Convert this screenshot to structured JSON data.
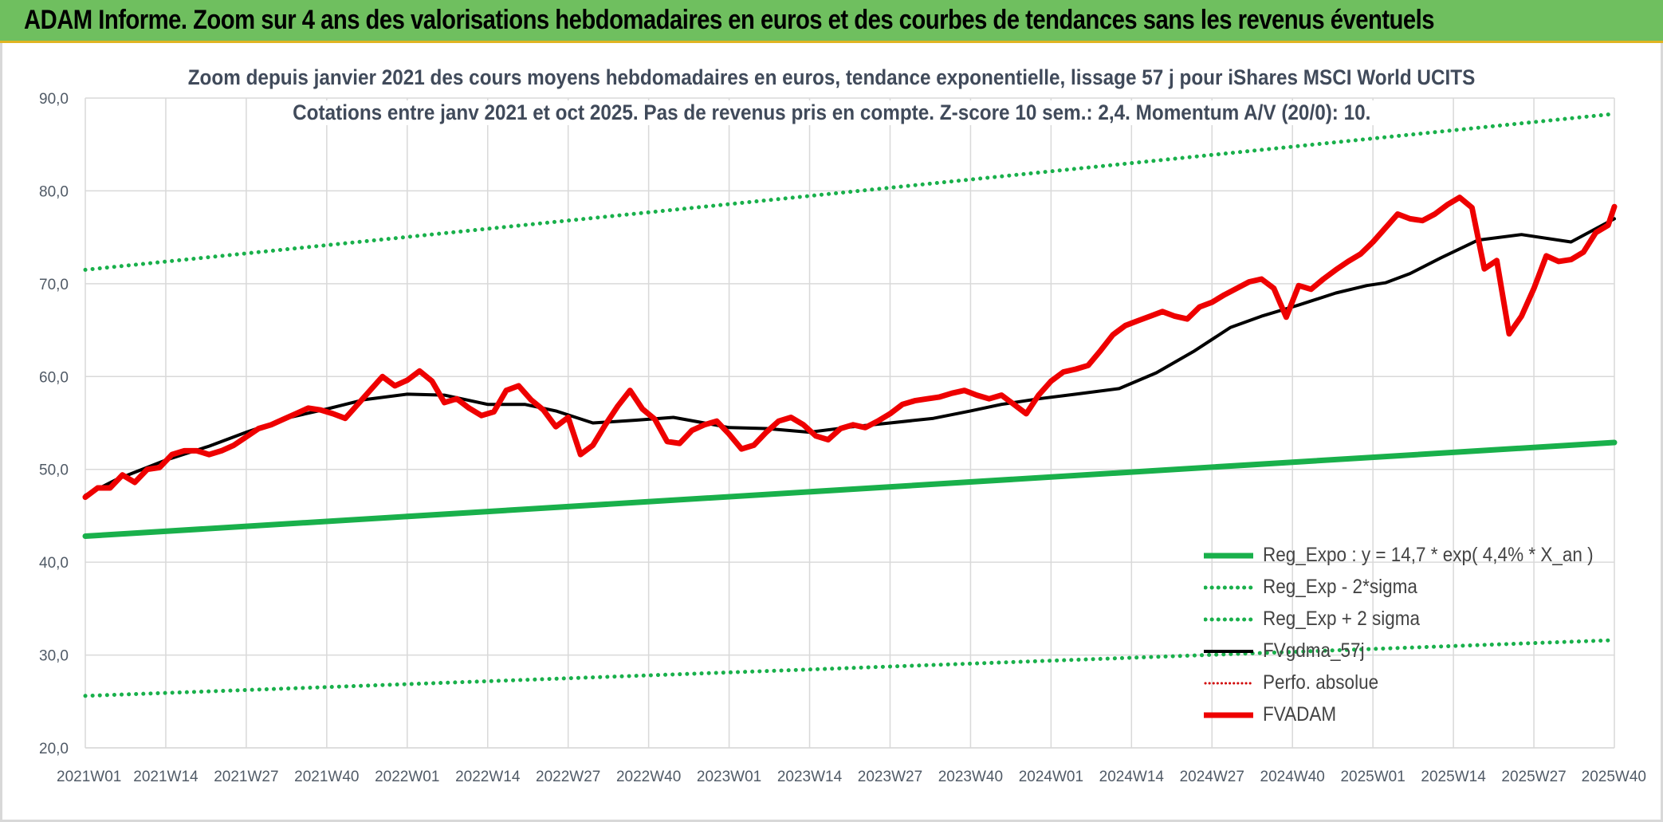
{
  "header": {
    "title": "ADAM Informe. Zoom sur 4 ans des valorisations hebdomadaires en euros et des courbes de tendances sans les revenus éventuels"
  },
  "colors": {
    "header_bg": "#6fbf5f",
    "header_border": "#e0b422",
    "trend_green": "#19b04b",
    "fvadam_red": "#ee0000",
    "smooth_black": "#000000",
    "perf_red": "#d00000",
    "grid": "#d9d9d9"
  },
  "chart_data": {
    "type": "line",
    "title": "Zoom depuis janvier 2021 des cours moyens hebdomadaires en euros, tendance exponentielle, lissage 57 j pour iShares MSCI World UCITS",
    "subtitle": "Cotations entre janv 2021 et oct 2025. Pas de revenus pris en compte. Z-score 10 sem.: 2,4. Momentum A/V (20/0): 10.",
    "xlabel": "",
    "ylabel": "",
    "ylim": [
      20,
      90
    ],
    "yticks": [
      "20,0",
      "30,0",
      "40,0",
      "50,0",
      "60,0",
      "70,0",
      "80,0",
      "90,0"
    ],
    "x_ticks": [
      "2021W01",
      "2021W14",
      "2021W27",
      "2021W40",
      "2022W01",
      "2022W14",
      "2022W27",
      "2022W40",
      "2023W01",
      "2023W14",
      "2023W27",
      "2023W40",
      "2024W01",
      "2024W14",
      "2024W27",
      "2024W40",
      "2025W01",
      "2025W14",
      "2025W27",
      "2025W40"
    ],
    "x_week_index_range": [
      0,
      247
    ],
    "grid": true,
    "legend_position": "bottom-right",
    "series": [
      {
        "name": "Reg_Expo : y = 14,7 * exp( 4,4% *  X_an )",
        "style": "solid-thick",
        "color": "#19b04b",
        "x_index": [
          0,
          247
        ],
        "values": [
          42.8,
          52.9
        ]
      },
      {
        "name": "Reg_Exp - 2*sigma",
        "style": "dotted",
        "color": "#19b04b",
        "x_index": [
          0,
          247
        ],
        "values": [
          25.6,
          31.6
        ]
      },
      {
        "name": "Reg_Exp + 2 sigma",
        "style": "dotted",
        "color": "#19b04b",
        "x_index": [
          0,
          247
        ],
        "values": [
          71.5,
          88.3
        ]
      },
      {
        "name": "FVgdma_57j",
        "style": "solid",
        "color": "#000000",
        "x_index": [
          0,
          5,
          13,
          20,
          26,
          33,
          39,
          45,
          52,
          58,
          65,
          71,
          76,
          82,
          89,
          95,
          100,
          104,
          110,
          117,
          124,
          130,
          137,
          143,
          148,
          154,
          160,
          167,
          173,
          179,
          185,
          190,
          196,
          202,
          207,
          210,
          214,
          219,
          225,
          232,
          240,
          247
        ],
        "values": [
          47.2,
          48.9,
          51.0,
          52.5,
          54.0,
          55.6,
          56.5,
          57.5,
          58.1,
          58.0,
          57.0,
          57.0,
          56.3,
          55.0,
          55.3,
          55.6,
          55.0,
          54.5,
          54.4,
          54.0,
          54.6,
          55.0,
          55.5,
          56.3,
          57.0,
          57.6,
          58.1,
          58.7,
          60.4,
          62.7,
          65.3,
          66.5,
          67.7,
          69.0,
          69.8,
          70.1,
          71.1,
          72.8,
          74.7,
          75.3,
          74.5,
          77.0
        ]
      },
      {
        "name": "Perfo. absolue",
        "style": "dotted",
        "color": "#d00000",
        "x_index": [],
        "values": []
      },
      {
        "name": "FVADAM",
        "style": "solid-thick",
        "color": "#ee0000",
        "x_index": [
          0,
          2,
          4,
          6,
          8,
          10,
          12,
          14,
          16,
          18,
          20,
          22,
          24,
          26,
          28,
          30,
          32,
          34,
          36,
          38,
          40,
          42,
          44,
          46,
          48,
          50,
          52,
          54,
          56,
          58,
          60,
          62,
          64,
          66,
          68,
          70,
          72,
          74,
          76,
          78,
          80,
          82,
          84,
          86,
          88,
          90,
          92,
          94,
          96,
          98,
          100,
          102,
          104,
          106,
          108,
          110,
          112,
          114,
          116,
          118,
          120,
          122,
          124,
          126,
          128,
          130,
          132,
          134,
          136,
          138,
          140,
          142,
          144,
          146,
          148,
          150,
          152,
          154,
          156,
          158,
          160,
          162,
          164,
          166,
          168,
          170,
          172,
          174,
          176,
          178,
          180,
          182,
          184,
          186,
          188,
          190,
          192,
          194,
          196,
          198,
          200,
          202,
          204,
          206,
          208,
          210,
          212,
          214,
          216,
          218,
          220,
          222,
          224,
          226,
          228,
          230,
          232,
          234,
          236,
          238,
          240,
          242,
          244,
          246,
          247
        ],
        "values": [
          47.0,
          48.0,
          48.0,
          49.4,
          48.6,
          50.0,
          50.2,
          51.6,
          52.0,
          52.0,
          51.6,
          52.0,
          52.6,
          53.5,
          54.4,
          54.8,
          55.4,
          56.0,
          56.6,
          56.4,
          56.0,
          55.5,
          57.0,
          58.5,
          60.0,
          59.0,
          59.6,
          60.6,
          59.5,
          57.2,
          57.6,
          56.6,
          55.8,
          56.2,
          58.5,
          59.0,
          57.5,
          56.4,
          54.6,
          55.6,
          51.6,
          52.6,
          54.8,
          56.8,
          58.5,
          56.5,
          55.4,
          53.0,
          52.8,
          54.2,
          54.8,
          55.2,
          53.8,
          52.2,
          52.6,
          54.0,
          55.2,
          55.6,
          54.8,
          53.6,
          53.2,
          54.4,
          54.8,
          54.5,
          55.2,
          56.0,
          57.0,
          57.4,
          57.6,
          57.8,
          58.2,
          58.5,
          58.0,
          57.6,
          58.0,
          57.0,
          56.0,
          58.0,
          59.5,
          60.5,
          60.8,
          61.2,
          62.8,
          64.5,
          65.5,
          66.0,
          66.5,
          67.0,
          66.5,
          66.2,
          67.5,
          68.0,
          68.8,
          69.5,
          70.2,
          70.5,
          69.5,
          66.4,
          69.8,
          69.4,
          70.5,
          71.5,
          72.4,
          73.2,
          74.5,
          76.0,
          77.5,
          77.0,
          76.8,
          77.5,
          78.5,
          79.3,
          78.2,
          71.6,
          72.5,
          64.6,
          66.5,
          69.5,
          73.0,
          72.4,
          72.6,
          73.4,
          75.5,
          76.3,
          78.3
        ]
      }
    ]
  }
}
